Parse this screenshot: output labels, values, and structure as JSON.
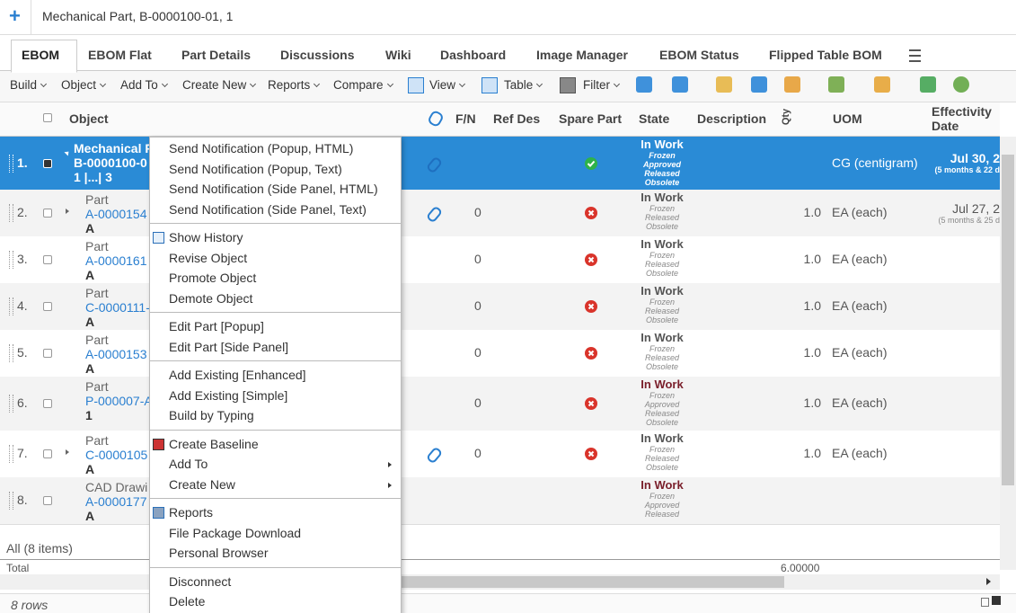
{
  "header": {
    "title": "Mechanical Part, B-0000100-01, 1"
  },
  "tabs": [
    "EBOM",
    "EBOM Flat",
    "Part Details",
    "Discussions",
    "Wiki",
    "Dashboard",
    "Image Manager",
    "EBOM Status",
    "Flipped Table BOM"
  ],
  "toolbar": [
    "Build",
    "Object",
    "Add To",
    "Create New",
    "Reports",
    "Compare",
    "View",
    "Table",
    "Filter"
  ],
  "columns": [
    "Object",
    "F/N",
    "Ref Des",
    "Spare Part",
    "State",
    "Description",
    "Qty",
    "UOM",
    "Effectivity Date"
  ],
  "rows": [
    {
      "number": "1.",
      "selected": true,
      "expand": true,
      "object": [
        "Mechanical P",
        "B-0000100-0",
        "1 |...| 3"
      ],
      "attachment": true,
      "spare": true,
      "state": "In Work",
      "substates": [
        "Frozen",
        "Approved",
        "Released",
        "Obsolete"
      ],
      "uom": "CG (centigram)",
      "effectivity": "Jul 30, 2",
      "effectivity_note": "(5 months & 22 d"
    },
    {
      "number": "2.",
      "expand": true,
      "object": [
        "Part",
        "A-0000154",
        "A"
      ],
      "attachment": true,
      "fn": "0",
      "spare": false,
      "state": "In Work",
      "substates": [
        "Frozen",
        "Released",
        "Obsolete"
      ],
      "qty": "1.0",
      "uom": "EA (each)",
      "effectivity": "Jul 27, 2",
      "effectivity_note": "(5 months & 25 d"
    },
    {
      "number": "3.",
      "object": [
        "Part",
        "A-0000161",
        "A"
      ],
      "fn": "0",
      "spare": false,
      "state": "In Work",
      "substates": [
        "Frozen",
        "Released",
        "Obsolete"
      ],
      "qty": "1.0",
      "uom": "EA (each)"
    },
    {
      "number": "4.",
      "object": [
        "Part",
        "C-0000111-",
        "A"
      ],
      "fn": "0",
      "spare": false,
      "state": "In Work",
      "substates": [
        "Frozen",
        "Released",
        "Obsolete"
      ],
      "qty": "1.0",
      "uom": "EA (each)"
    },
    {
      "number": "5.",
      "object": [
        "Part",
        "A-0000153",
        "A"
      ],
      "fn": "0",
      "spare": false,
      "state": "In Work",
      "substates": [
        "Frozen",
        "Released",
        "Obsolete"
      ],
      "qty": "1.0",
      "uom": "EA (each)"
    },
    {
      "number": "6.",
      "object": [
        "Part",
        "P-000007-A",
        "1"
      ],
      "fn": "0",
      "spare": false,
      "state": "In Work",
      "state_color": "#7a1f2b",
      "substates": [
        "Frozen",
        "Approved",
        "Released",
        "Obsolete"
      ],
      "qty": "1.0",
      "uom": "EA (each)"
    },
    {
      "number": "7.",
      "expand": true,
      "object": [
        "Part",
        "C-0000105",
        "A"
      ],
      "attachment": true,
      "fn": "0",
      "spare": false,
      "state": "In Work",
      "substates": [
        "Frozen",
        "Released",
        "Obsolete"
      ],
      "qty": "1.0",
      "uom": "EA (each)"
    },
    {
      "number": "8.",
      "object": [
        "CAD Drawi",
        "A-0000177",
        "A"
      ],
      "state": "In Work",
      "state_color": "#7a1f2b",
      "substates": [
        "Frozen",
        "Approved",
        "Released"
      ]
    }
  ],
  "footer": {
    "count": "All (8 items)",
    "total_label": "Total",
    "total_qty": "6.00000",
    "rows": "8 rows"
  },
  "menu": [
    [
      {
        "label": "Send Notification (Popup, HTML)"
      },
      {
        "label": "Send Notification (Popup, Text)"
      },
      {
        "label": "Send Notification (Side Panel, HTML)"
      },
      {
        "label": "Send Notification (Side Panel, Text)"
      }
    ],
    [
      {
        "label": "Show History",
        "icon": "history"
      },
      {
        "label": "Revise Object"
      },
      {
        "label": "Promote Object"
      },
      {
        "label": "Demote Object"
      }
    ],
    [
      {
        "label": "Edit Part [Popup]"
      },
      {
        "label": "Edit Part [Side Panel]"
      }
    ],
    [
      {
        "label": "Add Existing [Enhanced]"
      },
      {
        "label": "Add Existing [Simple]"
      },
      {
        "label": "Build by Typing"
      }
    ],
    [
      {
        "label": "Create Baseline",
        "icon": "baseline"
      },
      {
        "label": "Add To",
        "submenu": true
      },
      {
        "label": "Create New",
        "submenu": true
      }
    ],
    [
      {
        "label": "Reports",
        "icon": "reports"
      },
      {
        "label": "File Package Download"
      },
      {
        "label": "Personal Browser"
      }
    ],
    [
      {
        "label": "Disconnect"
      },
      {
        "label": "Delete"
      }
    ]
  ]
}
